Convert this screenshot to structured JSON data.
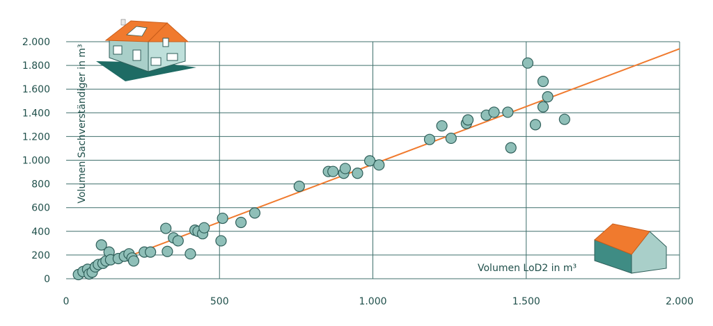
{
  "chart_data": {
    "type": "scatter",
    "xlabel": "Volumen LoD2 in m³",
    "ylabel": "Volumen Sachverständiger in m³",
    "xlim": [
      0,
      2000
    ],
    "ylim": [
      0,
      2000
    ],
    "x_ticks": [
      0,
      500,
      1000,
      1500,
      2000
    ],
    "x_tick_labels": [
      "0",
      "500",
      "1.000",
      "1.500",
      "2.000"
    ],
    "y_ticks": [
      0,
      200,
      400,
      600,
      800,
      1000,
      1200,
      1400,
      1600,
      1800,
      2000
    ],
    "y_tick_labels": [
      "0",
      "200",
      "400",
      "600",
      "800",
      "1.000",
      "1.200",
      "1.400",
      "1.600",
      "1.800",
      "2.000"
    ],
    "grid": true,
    "points": [
      {
        "x": 40,
        "y": 35
      },
      {
        "x": 55,
        "y": 60
      },
      {
        "x": 70,
        "y": 80
      },
      {
        "x": 75,
        "y": 40
      },
      {
        "x": 85,
        "y": 55
      },
      {
        "x": 95,
        "y": 100
      },
      {
        "x": 105,
        "y": 120
      },
      {
        "x": 115,
        "y": 285
      },
      {
        "x": 120,
        "y": 130
      },
      {
        "x": 130,
        "y": 150
      },
      {
        "x": 140,
        "y": 225
      },
      {
        "x": 145,
        "y": 160
      },
      {
        "x": 170,
        "y": 170
      },
      {
        "x": 190,
        "y": 190
      },
      {
        "x": 205,
        "y": 210
      },
      {
        "x": 215,
        "y": 175
      },
      {
        "x": 220,
        "y": 150
      },
      {
        "x": 255,
        "y": 225
      },
      {
        "x": 275,
        "y": 225
      },
      {
        "x": 325,
        "y": 425
      },
      {
        "x": 330,
        "y": 230
      },
      {
        "x": 350,
        "y": 345
      },
      {
        "x": 365,
        "y": 320
      },
      {
        "x": 405,
        "y": 210
      },
      {
        "x": 420,
        "y": 410
      },
      {
        "x": 430,
        "y": 400
      },
      {
        "x": 445,
        "y": 380
      },
      {
        "x": 450,
        "y": 430
      },
      {
        "x": 505,
        "y": 320
      },
      {
        "x": 510,
        "y": 510
      },
      {
        "x": 570,
        "y": 475
      },
      {
        "x": 615,
        "y": 555
      },
      {
        "x": 760,
        "y": 780
      },
      {
        "x": 855,
        "y": 905
      },
      {
        "x": 870,
        "y": 905
      },
      {
        "x": 905,
        "y": 890
      },
      {
        "x": 910,
        "y": 930
      },
      {
        "x": 950,
        "y": 890
      },
      {
        "x": 990,
        "y": 995
      },
      {
        "x": 1020,
        "y": 960
      },
      {
        "x": 1185,
        "y": 1175
      },
      {
        "x": 1225,
        "y": 1290
      },
      {
        "x": 1255,
        "y": 1185
      },
      {
        "x": 1305,
        "y": 1310
      },
      {
        "x": 1310,
        "y": 1340
      },
      {
        "x": 1370,
        "y": 1380
      },
      {
        "x": 1395,
        "y": 1405
      },
      {
        "x": 1440,
        "y": 1405
      },
      {
        "x": 1450,
        "y": 1105
      },
      {
        "x": 1505,
        "y": 1820
      },
      {
        "x": 1530,
        "y": 1300
      },
      {
        "x": 1555,
        "y": 1450
      },
      {
        "x": 1555,
        "y": 1665
      },
      {
        "x": 1570,
        "y": 1535
      },
      {
        "x": 1625,
        "y": 1345
      }
    ],
    "trendline": {
      "x0": 40,
      "y0": 30,
      "x1": 2000,
      "y1": 1940
    },
    "colors": {
      "grid": "#3f6f6b",
      "axis_text": "#1f4f4a",
      "point_fill": "#8fbfb8",
      "point_stroke": "#2e5e59",
      "trendline": "#f07a2e",
      "roof": "#f07a2e",
      "wall_light": "#a9cfc9",
      "wall_dark": "#3f8c84",
      "shadow": "#1e6b64"
    },
    "icons": [
      "house-photo-icon",
      "house-lod2-icon"
    ]
  }
}
